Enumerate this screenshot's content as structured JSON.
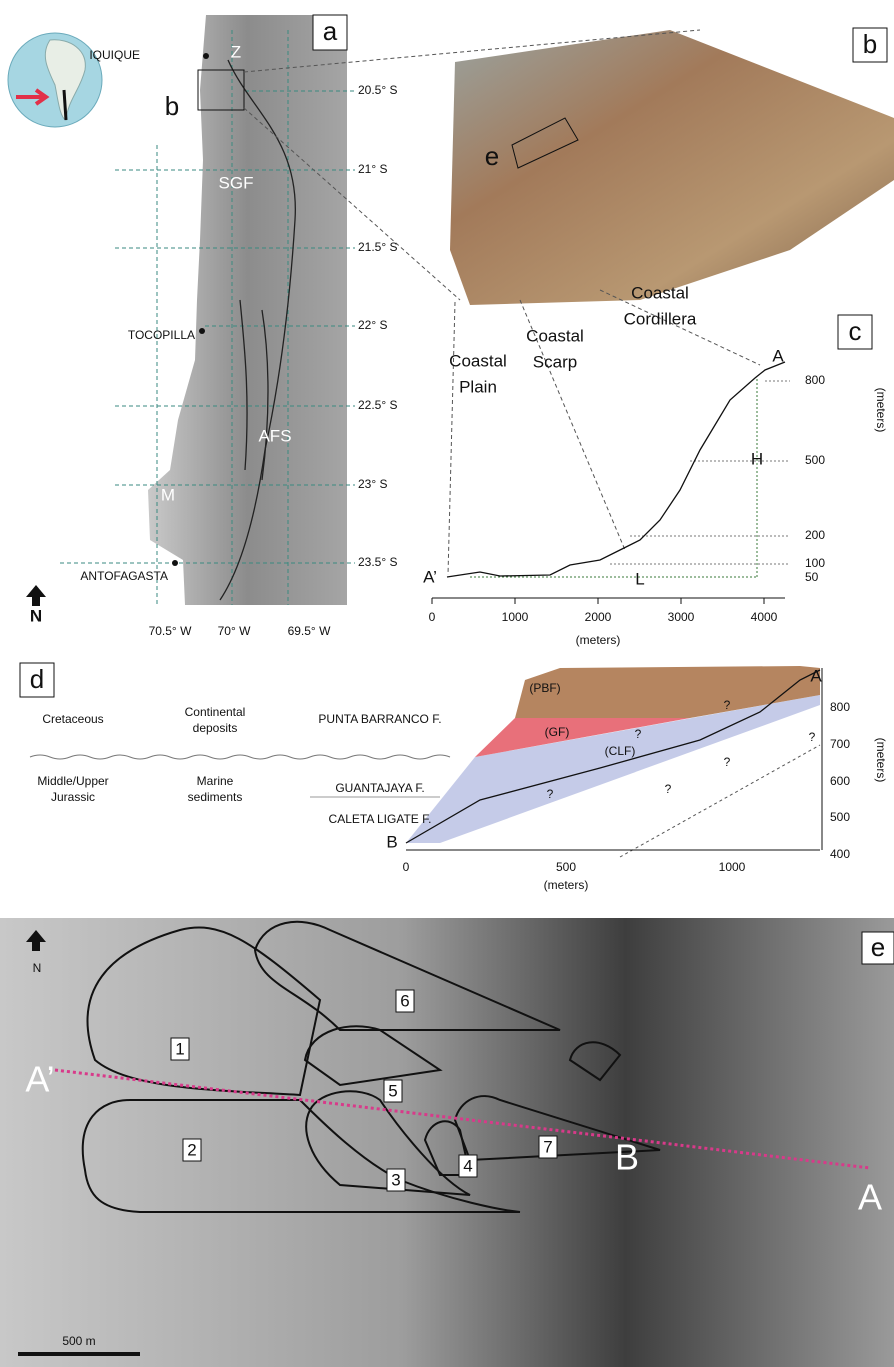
{
  "panel_a": {
    "label": "a",
    "inset_label": "b",
    "places": [
      "IQUIQUE",
      "TOCOPILLA",
      "ANTOFAGASTA"
    ],
    "features": [
      "Z",
      "SGF",
      "AFS",
      "M"
    ],
    "latitudes": [
      "20.5° S",
      "21° S",
      "21.5° S",
      "22° S",
      "22.5° S",
      "23° S",
      "23.5° S"
    ],
    "longitudes": [
      "70.5° W",
      "70° W",
      "69.5° W"
    ],
    "north": "N"
  },
  "panel_b": {
    "label": "b",
    "inset_label": "e"
  },
  "panel_c": {
    "label": "c",
    "zones": [
      [
        "Coastal",
        "Cordillera"
      ],
      [
        "Coastal",
        "Scarp"
      ],
      [
        "Coastal",
        "Plain"
      ]
    ],
    "profile_ends": [
      "A",
      "A’"
    ],
    "dimensions": [
      "L",
      "H"
    ],
    "y_ticks": [
      800,
      500,
      200,
      100,
      50
    ],
    "y_unit": "(meters)",
    "x_ticks": [
      0,
      1000,
      2000,
      3000,
      4000
    ],
    "x_unit": "(meters)"
  },
  "panel_d": {
    "label": "d",
    "rows": [
      [
        "Cretaceous",
        [
          "Continental",
          "deposits"
        ],
        "PUNTA BARRANCO F."
      ],
      [
        [
          "Middle/Upper",
          "Jurassic"
        ],
        [
          "Marine",
          "sediments"
        ],
        "GUANTAJAYA F.",
        "CALETA LIGATE F."
      ]
    ],
    "units": [
      "(PBF)",
      "(GF)",
      "(CLF)"
    ],
    "section_ends": [
      "A",
      "B"
    ],
    "uncertain": [
      "?",
      "?",
      "?",
      "?",
      "?",
      "?"
    ],
    "y_ticks": [
      800,
      700,
      600,
      500,
      400
    ],
    "y_unit": "(meters)",
    "x_ticks": [
      0,
      500,
      1000
    ],
    "x_unit": "(meters)"
  },
  "panel_e": {
    "label": "e",
    "north": "N",
    "bodies": [
      "1",
      "2",
      "3",
      "4",
      "5",
      "6",
      "7"
    ],
    "profile_points": [
      "A’",
      "B",
      "A"
    ],
    "scale": "500 m"
  }
}
